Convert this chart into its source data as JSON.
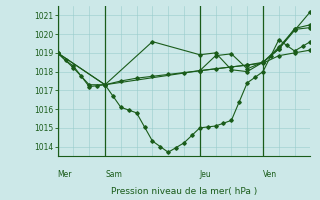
{
  "title": "Pression niveau de la mer( hPa )",
  "ylim": [
    1013.5,
    1021.5
  ],
  "yticks": [
    1014,
    1015,
    1016,
    1017,
    1018,
    1019,
    1020,
    1021
  ],
  "xlim": [
    0,
    16
  ],
  "background_color": "#cce8e8",
  "grid_color": "#99cccc",
  "line_color": "#1a5c1a",
  "day_labels": [
    "Mer",
    "Sam",
    "Jeu",
    "Ven"
  ],
  "day_positions": [
    0,
    3,
    9,
    13
  ],
  "series1_x": [
    0,
    0.5,
    1,
    1.5,
    2,
    2.5,
    3,
    3.5,
    4,
    4.5,
    5,
    5.5,
    6,
    6.5,
    7,
    7.5,
    8,
    8.5,
    9,
    9.5,
    10,
    10.5,
    11,
    11.5,
    12,
    12.5,
    13,
    13.5,
    14,
    14.5,
    15,
    15.5,
    16
  ],
  "series1_y": [
    1019.0,
    1018.6,
    1018.3,
    1017.75,
    1017.2,
    1017.25,
    1017.3,
    1016.7,
    1016.1,
    1015.95,
    1015.8,
    1015.05,
    1014.3,
    1014.0,
    1013.7,
    1013.95,
    1014.2,
    1014.6,
    1015.0,
    1015.05,
    1015.1,
    1015.25,
    1015.4,
    1016.4,
    1017.4,
    1017.7,
    1018.0,
    1018.85,
    1019.7,
    1019.4,
    1019.1,
    1019.35,
    1019.6
  ],
  "series2_x": [
    0,
    1,
    2,
    3,
    4,
    5,
    6,
    7,
    8,
    9,
    10,
    11,
    12,
    13,
    14,
    15,
    16
  ],
  "series2_y": [
    1019.0,
    1018.2,
    1017.3,
    1017.3,
    1017.5,
    1017.65,
    1017.75,
    1017.85,
    1017.95,
    1018.05,
    1018.15,
    1018.25,
    1018.35,
    1018.45,
    1018.85,
    1019.0,
    1019.15
  ],
  "series3_x": [
    0,
    3,
    9,
    12,
    13,
    14,
    15,
    16
  ],
  "series3_y": [
    1019.0,
    1017.3,
    1018.05,
    1018.35,
    1018.5,
    1019.2,
    1020.3,
    1020.5
  ],
  "series4_x": [
    0,
    3,
    6,
    9,
    10,
    11,
    12,
    13,
    14,
    15,
    16
  ],
  "series4_y": [
    1019.0,
    1017.3,
    1019.6,
    1018.9,
    1019.0,
    1018.1,
    1018.0,
    1018.5,
    1019.2,
    1020.2,
    1021.2
  ],
  "series5_x": [
    9,
    10,
    11,
    12,
    13,
    14,
    15,
    16
  ],
  "series5_y": [
    1018.05,
    1018.85,
    1018.95,
    1018.15,
    1018.5,
    1019.3,
    1020.25,
    1020.35
  ]
}
